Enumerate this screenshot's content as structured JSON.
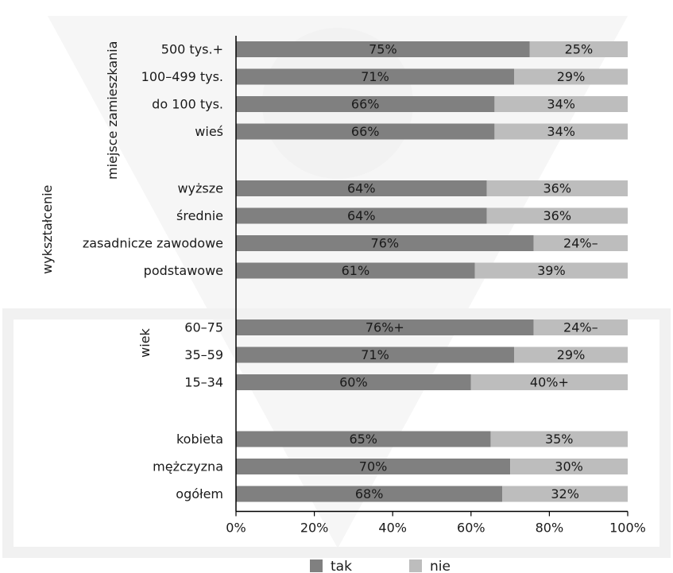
{
  "chart_data": {
    "type": "bar",
    "orientation": "horizontal",
    "stacked": true,
    "percent_scale": true,
    "groups": [
      {
        "label": "miejsce zamieszkania",
        "rows": [
          {
            "category": "500 tys.+",
            "tak": 75,
            "nie": 25,
            "tak_label": "75%",
            "nie_label": "25%"
          },
          {
            "category": "100–499 tys.",
            "tak": 71,
            "nie": 29,
            "tak_label": "71%",
            "nie_label": "29%"
          },
          {
            "category": "do 100 tys.",
            "tak": 66,
            "nie": 34,
            "tak_label": "66%",
            "nie_label": "34%"
          },
          {
            "category": "wieś",
            "tak": 66,
            "nie": 34,
            "tak_label": "66%",
            "nie_label": "34%"
          }
        ]
      },
      {
        "label": "wykształcenie",
        "rows": [
          {
            "category": "wyższe",
            "tak": 64,
            "nie": 36,
            "tak_label": "64%",
            "nie_label": "36%"
          },
          {
            "category": "średnie",
            "tak": 64,
            "nie": 36,
            "tak_label": "64%",
            "nie_label": "36%"
          },
          {
            "category": "zasadnicze zawodowe",
            "tak": 76,
            "nie": 24,
            "tak_label": "76%",
            "nie_label": "24%–"
          },
          {
            "category": "podstawowe",
            "tak": 61,
            "nie": 39,
            "tak_label": "61%",
            "nie_label": "39%"
          }
        ]
      },
      {
        "label": "wiek",
        "rows": [
          {
            "category": "60–75",
            "tak": 76,
            "nie": 24,
            "tak_label": "76%+",
            "nie_label": "24%–"
          },
          {
            "category": "35–59",
            "tak": 71,
            "nie": 29,
            "tak_label": "71%",
            "nie_label": "29%"
          },
          {
            "category": "15–34",
            "tak": 60,
            "nie": 40,
            "tak_label": "60%",
            "nie_label": "40%+"
          }
        ]
      },
      {
        "label": "",
        "rows": [
          {
            "category": "kobieta",
            "tak": 65,
            "nie": 35,
            "tak_label": "65%",
            "nie_label": "35%"
          },
          {
            "category": "mężczyzna",
            "tak": 70,
            "nie": 30,
            "tak_label": "70%",
            "nie_label": "30%"
          },
          {
            "category": "ogółem",
            "tak": 68,
            "nie": 32,
            "tak_label": "68%",
            "nie_label": "32%"
          }
        ]
      }
    ],
    "series": [
      {
        "name": "tak",
        "color": "#808080"
      },
      {
        "name": "nie",
        "color": "#bdbdbd"
      }
    ],
    "xlim": [
      0,
      100
    ],
    "x_ticks": [
      "0%",
      "20%",
      "40%",
      "60%",
      "80%",
      "100%"
    ],
    "grid": false,
    "legend_position": "bottom"
  }
}
